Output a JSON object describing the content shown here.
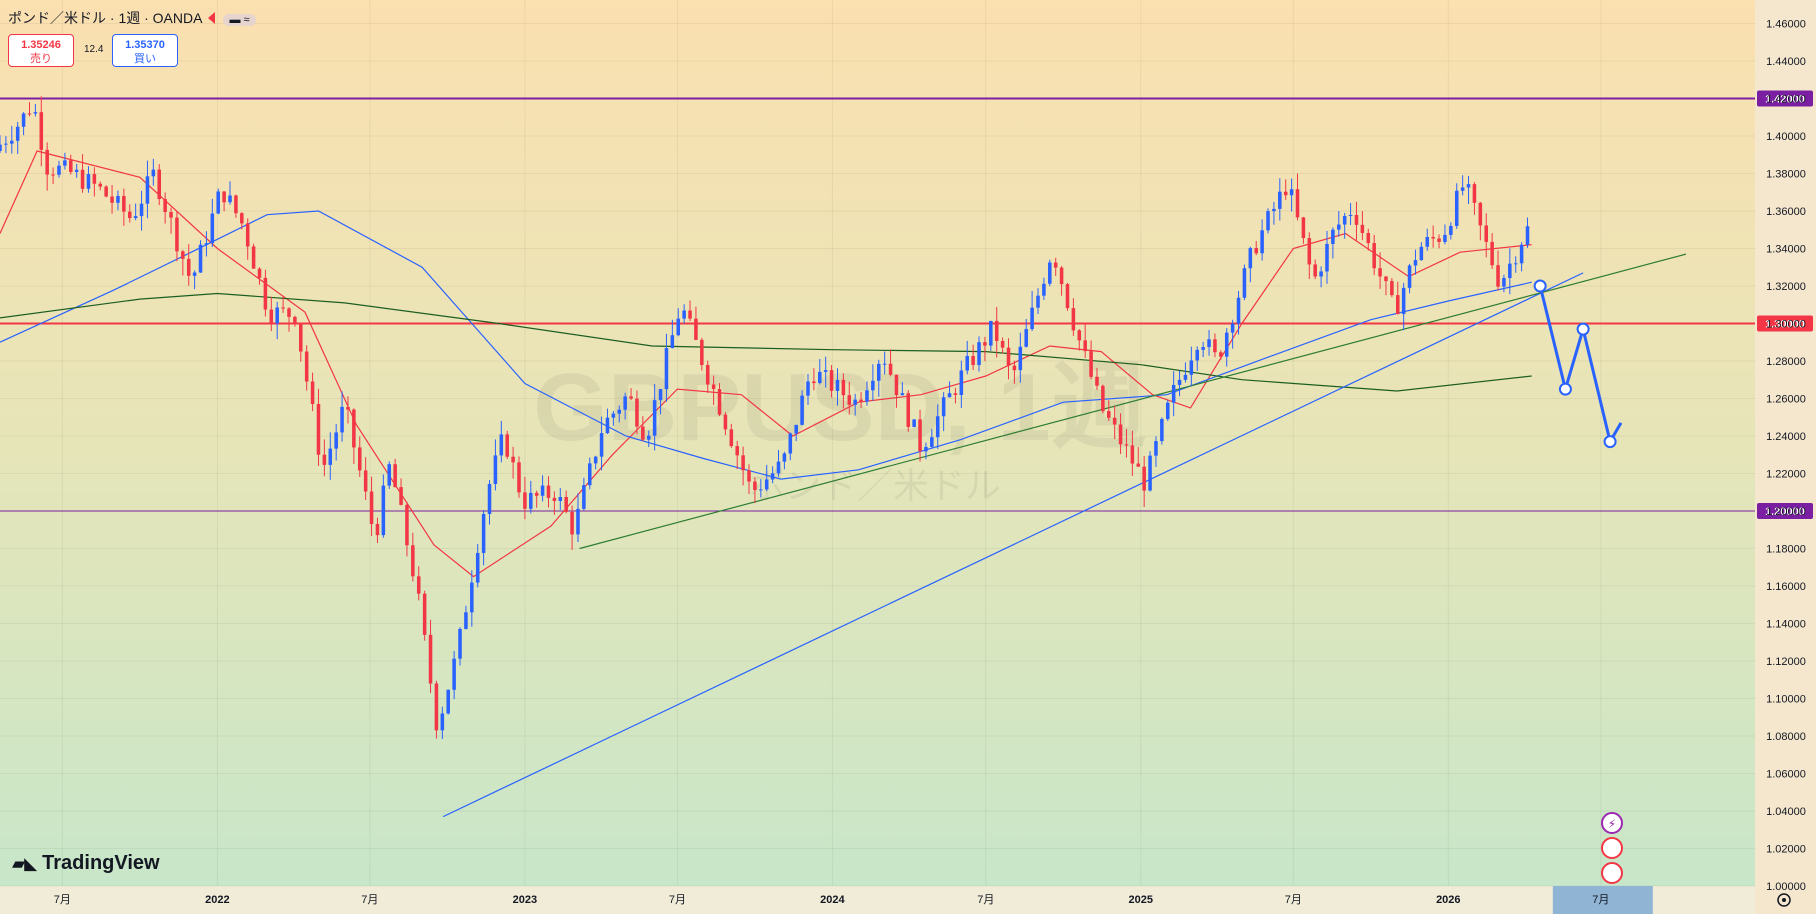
{
  "header": {
    "title": "ポンド／米ドル · 1週 · OANDA",
    "sell_price": "1.35246",
    "sell_label": "売り",
    "spread": "12.4",
    "buy_price": "1.35370",
    "buy_label": "買い"
  },
  "watermark": {
    "line1": "GBPUSD, 1週",
    "line2": "ポンド／米ドル"
  },
  "brand": "TradingView",
  "colors": {
    "up": "#2962ff",
    "down": "#f23645",
    "sma_fast": "#f23645",
    "sma_mid": "#2962ff",
    "sma_slow": "#1b5e20",
    "level_purple": "#7b1fa2",
    "level_red": "#f23645"
  },
  "chart_data": {
    "type": "candlestick",
    "symbol": "GBPUSD",
    "timeframe": "1週",
    "source": "OANDA",
    "ylim": [
      1.0,
      1.46
    ],
    "xlim": [
      "2021-04-18",
      "2026-12-31"
    ],
    "y_ticks": [
      "1.46000",
      "1.44000",
      "1.42000",
      "1.40000",
      "1.38000",
      "1.36000",
      "1.34000",
      "1.32000",
      "1.30000",
      "1.28000",
      "1.26000",
      "1.24000",
      "1.22000",
      "1.20000",
      "1.18000",
      "1.16000",
      "1.14000",
      "1.12000",
      "1.10000",
      "1.08000",
      "1.06000",
      "1.04000",
      "1.02000",
      "1.00000"
    ],
    "x_ticks": [
      {
        "date": "2021-07-01",
        "label": "7月"
      },
      {
        "date": "2022-01-01",
        "label": "2022"
      },
      {
        "date": "2022-07-01",
        "label": "7月"
      },
      {
        "date": "2023-01-01",
        "label": "2023"
      },
      {
        "date": "2023-07-01",
        "label": "7月"
      },
      {
        "date": "2024-01-01",
        "label": "2024"
      },
      {
        "date": "2024-07-01",
        "label": "7月"
      },
      {
        "date": "2025-01-01",
        "label": "2025"
      },
      {
        "date": "2025-07-01",
        "label": "7月"
      },
      {
        "date": "2026-01-01",
        "label": "2026"
      },
      {
        "date": "2026-07-01",
        "label": "7月"
      }
    ],
    "horizontal_levels": [
      {
        "price": 1.42,
        "label": "1.42000",
        "color": "#7b1fa2"
      },
      {
        "price": 1.3,
        "label": "1.30000",
        "color": "#f23645"
      },
      {
        "price": 1.2,
        "label": "1.20000",
        "color": "#7b1fa2"
      }
    ],
    "price_path": [
      [
        "2021-04-18",
        1.392
      ],
      [
        "2021-05-20",
        1.408
      ],
      [
        "2021-06-03",
        1.418
      ],
      [
        "2021-06-20",
        1.384
      ],
      [
        "2021-07-20",
        1.38
      ],
      [
        "2021-08-20",
        1.372
      ],
      [
        "2021-09-28",
        1.356
      ],
      [
        "2021-10-25",
        1.38
      ],
      [
        "2021-12-08",
        1.322
      ],
      [
        "2022-01-13",
        1.372
      ],
      [
        "2022-02-08",
        1.352
      ],
      [
        "2022-03-10",
        1.306
      ],
      [
        "2022-04-10",
        1.305
      ],
      [
        "2022-05-13",
        1.222
      ],
      [
        "2022-06-08",
        1.256
      ],
      [
        "2022-07-14",
        1.186
      ],
      [
        "2022-08-01",
        1.225
      ],
      [
        "2022-09-01",
        1.16
      ],
      [
        "2022-09-26",
        1.085
      ],
      [
        "2022-10-20",
        1.125
      ],
      [
        "2022-11-24",
        1.21
      ],
      [
        "2022-12-14",
        1.24
      ],
      [
        "2023-01-06",
        1.205
      ],
      [
        "2023-02-13",
        1.21
      ],
      [
        "2023-03-07",
        1.19
      ],
      [
        "2023-04-10",
        1.245
      ],
      [
        "2023-05-10",
        1.262
      ],
      [
        "2023-06-01",
        1.24
      ],
      [
        "2023-07-12",
        1.31
      ],
      [
        "2023-08-24",
        1.26
      ],
      [
        "2023-10-04",
        1.21
      ],
      [
        "2023-11-10",
        1.225
      ],
      [
        "2023-12-14",
        1.275
      ],
      [
        "2024-02-05",
        1.258
      ],
      [
        "2024-03-07",
        1.285
      ],
      [
        "2024-04-22",
        1.234
      ],
      [
        "2024-06-13",
        1.275
      ],
      [
        "2024-07-17",
        1.298
      ],
      [
        "2024-08-08",
        1.27
      ],
      [
        "2024-09-25",
        1.34
      ],
      [
        "2024-10-24",
        1.295
      ],
      [
        "2024-11-22",
        1.255
      ],
      [
        "2025-01-13",
        1.215
      ],
      [
        "2025-02-13",
        1.26
      ],
      [
        "2025-03-19",
        1.295
      ],
      [
        "2025-04-08",
        1.28
      ],
      [
        "2025-05-22",
        1.34
      ],
      [
        "2025-07-01",
        1.375
      ],
      [
        "2025-08-01",
        1.322
      ],
      [
        "2025-08-26",
        1.35
      ],
      [
        "2025-09-17",
        1.362
      ],
      [
        "2025-10-15",
        1.33
      ],
      [
        "2025-11-05",
        1.306
      ],
      [
        "2025-12-03",
        1.34
      ],
      [
        "2026-01-02",
        1.348
      ],
      [
        "2026-01-27",
        1.375
      ],
      [
        "2026-02-19",
        1.345
      ],
      [
        "2026-03-10",
        1.322
      ],
      [
        "2026-03-26",
        1.335
      ],
      [
        "2026-04-10",
        1.35
      ]
    ],
    "moving_averages": [
      {
        "color": "#f23645",
        "points": [
          [
            "2021-04-18",
            1.348
          ],
          [
            "2021-06-01",
            1.392
          ],
          [
            "2021-10-01",
            1.378
          ],
          [
            "2022-01-01",
            1.34
          ],
          [
            "2022-04-15",
            1.306
          ],
          [
            "2022-06-15",
            1.246
          ],
          [
            "2022-09-15",
            1.182
          ],
          [
            "2022-11-01",
            1.165
          ],
          [
            "2023-02-01",
            1.192
          ],
          [
            "2023-04-15",
            1.23
          ],
          [
            "2023-07-01",
            1.265
          ],
          [
            "2023-09-15",
            1.262
          ],
          [
            "2023-11-15",
            1.24
          ],
          [
            "2024-02-01",
            1.258
          ],
          [
            "2024-04-15",
            1.262
          ],
          [
            "2024-07-01",
            1.272
          ],
          [
            "2024-09-15",
            1.288
          ],
          [
            "2024-11-15",
            1.285
          ],
          [
            "2025-01-15",
            1.262
          ],
          [
            "2025-03-01",
            1.255
          ],
          [
            "2025-05-01",
            1.3
          ],
          [
            "2025-07-01",
            1.34
          ],
          [
            "2025-09-01",
            1.348
          ],
          [
            "2025-11-15",
            1.325
          ],
          [
            "2026-01-15",
            1.338
          ],
          [
            "2026-04-10",
            1.342
          ]
        ]
      },
      {
        "color": "#2962ff",
        "points": [
          [
            "2021-04-18",
            1.29
          ],
          [
            "2021-09-01",
            1.318
          ],
          [
            "2021-12-01",
            1.338
          ],
          [
            "2022-03-01",
            1.358
          ],
          [
            "2022-05-01",
            1.36
          ],
          [
            "2022-09-01",
            1.33
          ],
          [
            "2023-01-01",
            1.268
          ],
          [
            "2023-05-01",
            1.24
          ],
          [
            "2023-08-01",
            1.228
          ],
          [
            "2023-11-01",
            1.217
          ],
          [
            "2024-02-01",
            1.222
          ],
          [
            "2024-06-01",
            1.238
          ],
          [
            "2024-10-01",
            1.258
          ],
          [
            "2025-02-01",
            1.262
          ],
          [
            "2025-06-01",
            1.282
          ],
          [
            "2025-10-01",
            1.302
          ],
          [
            "2026-01-01",
            1.312
          ],
          [
            "2026-04-10",
            1.322
          ]
        ]
      },
      {
        "color": "#1b5e20",
        "points": [
          [
            "2021-04-18",
            1.303
          ],
          [
            "2021-10-01",
            1.313
          ],
          [
            "2022-01-01",
            1.316
          ],
          [
            "2022-06-01",
            1.311
          ],
          [
            "2022-12-01",
            1.3
          ],
          [
            "2023-06-01",
            1.288
          ],
          [
            "2024-01-01",
            1.286
          ],
          [
            "2024-07-01",
            1.285
          ],
          [
            "2025-01-01",
            1.278
          ],
          [
            "2025-05-01",
            1.27
          ],
          [
            "2025-11-01",
            1.264
          ],
          [
            "2026-04-10",
            1.272
          ]
        ]
      }
    ],
    "trendlines": [
      {
        "color": "#2962ff",
        "from": [
          "2022-09-26",
          1.037
        ],
        "to": [
          "2026-06-10",
          1.327
        ]
      },
      {
        "color": "#2e7d32",
        "from": [
          "2023-03-07",
          1.18
        ],
        "to": [
          "2026-10-10",
          1.337
        ]
      }
    ],
    "forecast_path": [
      [
        "2026-04-20",
        1.32
      ],
      [
        "2026-05-20",
        1.265
      ],
      [
        "2026-06-10",
        1.297
      ],
      [
        "2026-07-12",
        1.237
      ],
      [
        "2026-07-25",
        1.247
      ]
    ]
  }
}
